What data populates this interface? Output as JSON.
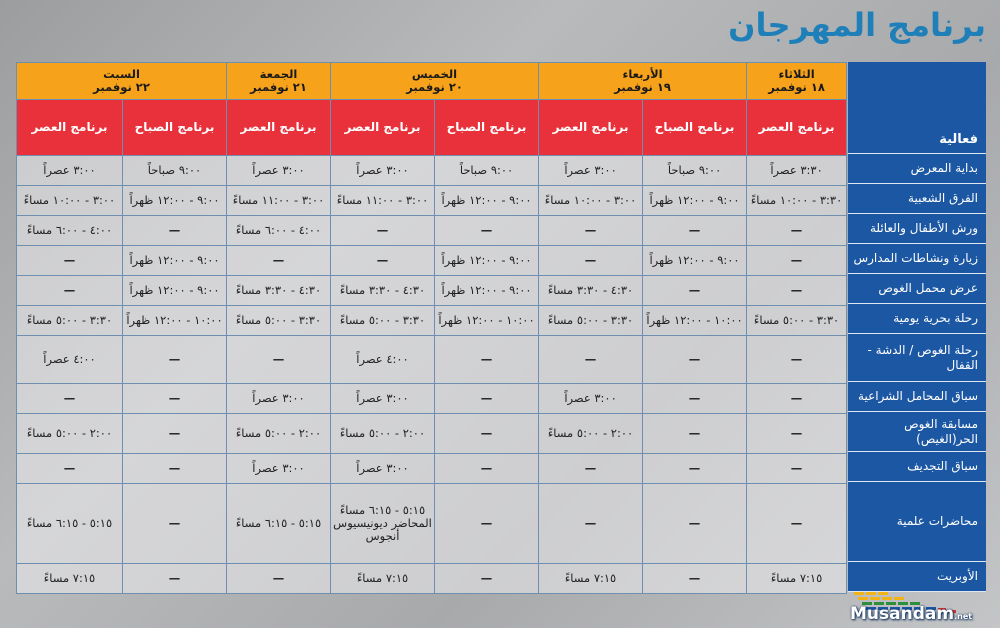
{
  "title": "برنامج المهرجان",
  "activity_header": "فعالية",
  "days": [
    {
      "name": "الثلاثاء",
      "date": "١٨ نوفمبر",
      "sessions": [
        "برنامج العصر"
      ]
    },
    {
      "name": "الأربعاء",
      "date": "١٩ نوفمبر",
      "sessions": [
        "برنامج الصباح",
        "برنامج العصر"
      ]
    },
    {
      "name": "الخميس",
      "date": "٢٠ نوفمبر",
      "sessions": [
        "برنامج الصباح",
        "برنامج العصر"
      ]
    },
    {
      "name": "الجمعة",
      "date": "٢١ نوفمبر",
      "sessions": [
        "برنامج العصر"
      ]
    },
    {
      "name": "السبت",
      "date": "٢٢ نوفمبر",
      "sessions": [
        "برنامج الصباح",
        "برنامج العصر"
      ]
    }
  ],
  "rows": [
    {
      "activity": "بداية المعرض",
      "cells": [
        "٣:٣٠ عصراً",
        "٩:٠٠ صباحاً",
        "٣:٠٠ عصراً",
        "٩:٠٠ صباحاً",
        "٣:٠٠ عصراً",
        "٣:٠٠ عصراً",
        "٩:٠٠ صباحاً",
        "٣:٠٠ عصراً"
      ]
    },
    {
      "activity": "الفرق الشعبية",
      "cells": [
        "٣:٣٠ - ١٠:٠٠ مساءً",
        "٩:٠٠ - ١٢:٠٠ ظهراً",
        "٣:٠٠ - ١٠:٠٠ مساءً",
        "٩:٠٠ - ١٢:٠٠ ظهراً",
        "٣:٠٠ - ١١:٠٠ مساءً",
        "٣:٠٠ - ١١:٠٠ مساءً",
        "٩:٠٠ - ١٢:٠٠ ظهراً",
        "٣:٠٠ - ١٠:٠٠ مساءً"
      ]
    },
    {
      "activity": "ورش الأطفال والعائلة",
      "cells": [
        "—",
        "—",
        "—",
        "—",
        "—",
        "٤:٠٠ - ٦:٠٠ مساءً",
        "—",
        "٤:٠٠ - ٦:٠٠ مساءً"
      ]
    },
    {
      "activity": "زيارة ونشاطات المدارس",
      "cells": [
        "—",
        "٩:٠٠ - ١٢:٠٠ ظهراً",
        "—",
        "٩:٠٠ - ١٢:٠٠ ظهراً",
        "—",
        "—",
        "٩:٠٠ - ١٢:٠٠ ظهراً",
        "—"
      ]
    },
    {
      "activity": "عرض محمل الغوص",
      "cells": [
        "—",
        "—",
        "٤:٣٠ - ٣:٣٠ مساءً",
        "٩:٠٠ - ١٢:٠٠ ظهراً",
        "٤:٣٠ - ٣:٣٠ مساءً",
        "٤:٣٠ - ٣:٣٠ مساءً",
        "٩:٠٠ - ١٢:٠٠ ظهراً",
        "—"
      ]
    },
    {
      "activity": "رحلة بحرية يومية",
      "cells": [
        "٣:٣٠ - ٥:٠٠ مساءً",
        "١٠:٠٠ - ١٢:٠٠ ظهراً",
        "٣:٣٠ - ٥:٠٠ مساءً",
        "١٠:٠٠ - ١٢:٠٠ ظهراً",
        "٣:٣٠ - ٥:٠٠ مساءً",
        "٣:٣٠ - ٥:٠٠ مساءً",
        "١٠:٠٠ - ١٢:٠٠ ظهراً",
        "٣:٣٠ - ٥:٠٠ مساءً"
      ]
    },
    {
      "activity": "رحلة الغوص / الدشة - القفال",
      "cells": [
        "—",
        "—",
        "—",
        "—",
        "٤:٠٠ عصراً",
        "—",
        "—",
        "٤:٠٠ عصراً"
      ]
    },
    {
      "activity": "سباق المحامل الشراعية",
      "cells": [
        "—",
        "—",
        "٣:٠٠ عصراً",
        "—",
        "٣:٠٠ عصراً",
        "٣:٠٠ عصراً",
        "—",
        "—"
      ]
    },
    {
      "activity": "مسابقة الغوص الحر(الغيص)",
      "cells": [
        "—",
        "—",
        "٢:٠٠ - ٥:٠٠ مساءً",
        "—",
        "٢:٠٠ - ٥:٠٠ مساءً",
        "٢:٠٠ - ٥:٠٠ مساءً",
        "—",
        "٢:٠٠ - ٥:٠٠ مساءً"
      ]
    },
    {
      "activity": "سباق التجديف",
      "cells": [
        "—",
        "—",
        "—",
        "—",
        "٣:٠٠ عصراً",
        "٣:٠٠ عصراً",
        "—",
        "—"
      ]
    },
    {
      "activity": "محاضرات علمية",
      "cells": [
        "—",
        "—",
        "—",
        "—",
        "٥:١٥ - ٦:١٥ مساءً المحاضر ديونيسيوس أنجوس",
        "٥:١٥ - ٦:١٥ مساءً",
        "—",
        "٥:١٥ - ٦:١٥ مساءً"
      ]
    },
    {
      "activity": "الأوبريت",
      "cells": [
        "٧:١٥ مساءً",
        "—",
        "٧:١٥ مساءً",
        "—",
        "٧:١٥ مساءً",
        "—",
        "—",
        "٧:١٥ مساءً"
      ]
    }
  ],
  "logo": {
    "text": "Musandam",
    "suffix": ".net"
  },
  "colors": {
    "title": "#1f7fb8",
    "day_header": "#f7a21b",
    "session_header": "#e8313a",
    "activity_column": "#1c57a3"
  }
}
